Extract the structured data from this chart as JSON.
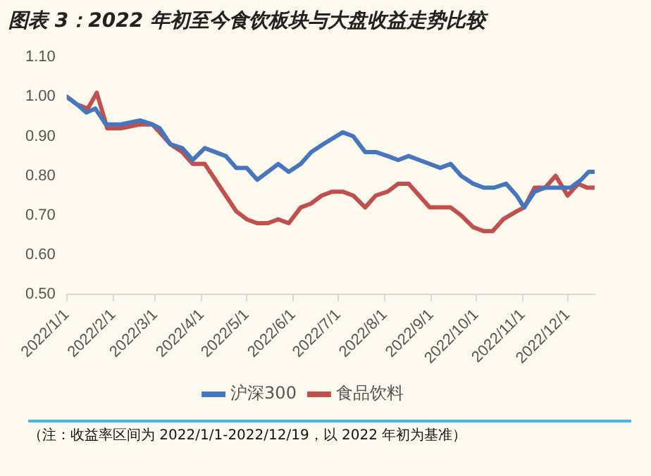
{
  "chart_data": {
    "type": "line",
    "title": "图表 3：2022 年初至今食饮板块与大盘收益走势比较",
    "annotations": [
      "（注：收益率区间为 2022/1/1-2022/12/19，以 2022 年初为基准）"
    ],
    "xlim": [
      "2022-01-01",
      "2022-12-19"
    ],
    "xticks": [
      {
        "value": "2022-01-01",
        "label": "2022/1/1"
      },
      {
        "value": "2022-02-01",
        "label": "2022/2/1"
      },
      {
        "value": "2022-03-01",
        "label": "2022/3/1"
      },
      {
        "value": "2022-04-01",
        "label": "2022/4/1"
      },
      {
        "value": "2022-05-01",
        "label": "2022/5/1"
      },
      {
        "value": "2022-06-01",
        "label": "2022/6/1"
      },
      {
        "value": "2022-07-01",
        "label": "2022/7/1"
      },
      {
        "value": "2022-08-01",
        "label": "2022/8/1"
      },
      {
        "value": "2022-09-01",
        "label": "2022/9/1"
      },
      {
        "value": "2022-10-01",
        "label": "2022/10/1"
      },
      {
        "value": "2022-11-01",
        "label": "2022/11/1"
      },
      {
        "value": "2022-12-01",
        "label": "2022/12/1"
      }
    ],
    "ylim": [
      0.5,
      1.1
    ],
    "yticks": [
      {
        "value": 0.5,
        "label": "0.50"
      },
      {
        "value": 0.6,
        "label": "0.60"
      },
      {
        "value": 0.7,
        "label": "0.70"
      },
      {
        "value": 0.8,
        "label": "0.80"
      },
      {
        "value": 0.9,
        "label": "0.90"
      },
      {
        "value": 1.0,
        "label": "1.00"
      },
      {
        "value": 1.1,
        "label": "1.10"
      }
    ],
    "grid": false,
    "legend": "bottom",
    "marker": "none",
    "line_style": "solid",
    "series": [
      {
        "name": "沪深300",
        "color": "#4677be",
        "x": [
          "2022-01-01",
          "2022-01-08",
          "2022-01-14",
          "2022-01-20",
          "2022-01-27",
          "2022-02-06",
          "2022-02-19",
          "2022-02-27",
          "2022-03-04",
          "2022-03-11",
          "2022-03-19",
          "2022-03-26",
          "2022-04-03",
          "2022-04-17",
          "2022-04-24",
          "2022-05-01",
          "2022-05-08",
          "2022-05-15",
          "2022-05-22",
          "2022-05-29",
          "2022-06-06",
          "2022-06-13",
          "2022-06-21",
          "2022-07-04",
          "2022-07-11",
          "2022-07-19",
          "2022-07-26",
          "2022-08-03",
          "2022-08-10",
          "2022-08-17",
          "2022-08-24",
          "2022-08-31",
          "2022-09-07",
          "2022-09-14",
          "2022-09-21",
          "2022-09-29",
          "2022-10-06",
          "2022-10-13",
          "2022-10-21",
          "2022-10-28",
          "2022-11-02",
          "2022-11-09",
          "2022-11-16",
          "2022-11-25",
          "2022-12-03",
          "2022-12-10",
          "2022-12-15",
          "2022-12-19"
        ],
        "values": [
          1.0,
          0.98,
          0.96,
          0.97,
          0.93,
          0.93,
          0.94,
          0.93,
          0.92,
          0.88,
          0.87,
          0.84,
          0.87,
          0.85,
          0.82,
          0.82,
          0.79,
          0.81,
          0.83,
          0.81,
          0.83,
          0.86,
          0.88,
          0.91,
          0.9,
          0.86,
          0.86,
          0.85,
          0.84,
          0.85,
          0.84,
          0.83,
          0.82,
          0.83,
          0.8,
          0.78,
          0.77,
          0.77,
          0.78,
          0.75,
          0.72,
          0.76,
          0.77,
          0.77,
          0.77,
          0.79,
          0.81,
          0.81
        ]
      },
      {
        "name": "食品饮料",
        "color": "#c0504d",
        "x": [
          "2022-01-01",
          "2022-01-08",
          "2022-01-15",
          "2022-01-21",
          "2022-01-28",
          "2022-02-06",
          "2022-02-19",
          "2022-02-27",
          "2022-03-04",
          "2022-03-11",
          "2022-03-19",
          "2022-03-26",
          "2022-04-03",
          "2022-04-10",
          "2022-04-17",
          "2022-04-24",
          "2022-05-01",
          "2022-05-08",
          "2022-05-15",
          "2022-05-22",
          "2022-05-29",
          "2022-06-06",
          "2022-06-13",
          "2022-06-20",
          "2022-06-27",
          "2022-07-04",
          "2022-07-11",
          "2022-07-19",
          "2022-07-26",
          "2022-08-03",
          "2022-08-10",
          "2022-08-17",
          "2022-08-24",
          "2022-08-31",
          "2022-09-07",
          "2022-09-14",
          "2022-09-21",
          "2022-09-29",
          "2022-10-06",
          "2022-10-12",
          "2022-10-19",
          "2022-10-28",
          "2022-11-02",
          "2022-11-09",
          "2022-11-16",
          "2022-11-23",
          "2022-12-01",
          "2022-12-08",
          "2022-12-14",
          "2022-12-19"
        ],
        "values": [
          1.0,
          0.98,
          0.97,
          1.01,
          0.92,
          0.92,
          0.93,
          0.93,
          0.91,
          0.88,
          0.86,
          0.83,
          0.83,
          0.79,
          0.75,
          0.71,
          0.69,
          0.68,
          0.68,
          0.69,
          0.68,
          0.72,
          0.73,
          0.75,
          0.76,
          0.76,
          0.75,
          0.72,
          0.75,
          0.76,
          0.78,
          0.78,
          0.75,
          0.72,
          0.72,
          0.72,
          0.7,
          0.67,
          0.66,
          0.66,
          0.69,
          0.71,
          0.72,
          0.77,
          0.77,
          0.8,
          0.75,
          0.78,
          0.77,
          0.77
        ]
      }
    ]
  }
}
